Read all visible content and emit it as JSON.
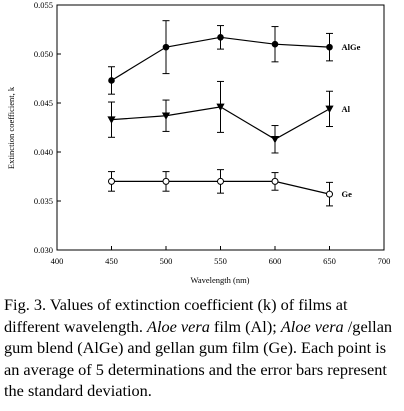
{
  "chart_data": {
    "type": "line",
    "xlabel": "Wavelength (nm)",
    "ylabel": "Extinction coefficient, k",
    "xlim": [
      400,
      700
    ],
    "ylim": [
      0.03,
      0.055
    ],
    "xticks": [
      "400",
      "450",
      "500",
      "550",
      "600",
      "650",
      "700"
    ],
    "yticks": [
      "0.030",
      "0.035",
      "0.040",
      "0.045",
      "0.050",
      "0.055"
    ],
    "grid": false,
    "legend": "inline-right",
    "x": [
      450,
      500,
      550,
      600,
      650
    ],
    "series": [
      {
        "name": "AlGe",
        "marker": "filled-circle",
        "values": [
          0.0473,
          0.0507,
          0.0517,
          0.051,
          0.0507
        ],
        "error": [
          0.0014,
          0.0027,
          0.0012,
          0.0018,
          0.0014
        ]
      },
      {
        "name": "Al",
        "marker": "filled-triangle-down",
        "values": [
          0.0433,
          0.0437,
          0.0446,
          0.0413,
          0.0444
        ],
        "error": [
          0.0018,
          0.0016,
          0.0026,
          0.0014,
          0.0018
        ]
      },
      {
        "name": "Ge",
        "marker": "open-circle",
        "values": [
          0.037,
          0.037,
          0.037,
          0.037,
          0.0357
        ],
        "error": [
          0.001,
          0.001,
          0.0012,
          0.0009,
          0.0012
        ]
      }
    ]
  },
  "caption": {
    "prefix": "Fig. 3. Values of extinction coefficient (k) of films at different wavelength. ",
    "italic1": "Aloe vera",
    "text1": " film (Al); ",
    "italic2": "Aloe vera",
    "text2": " /gellan gum blend (AlGe) and gellan gum film (Ge). Each point is an average of 5 determinations and the error bars represent the standard deviation."
  }
}
